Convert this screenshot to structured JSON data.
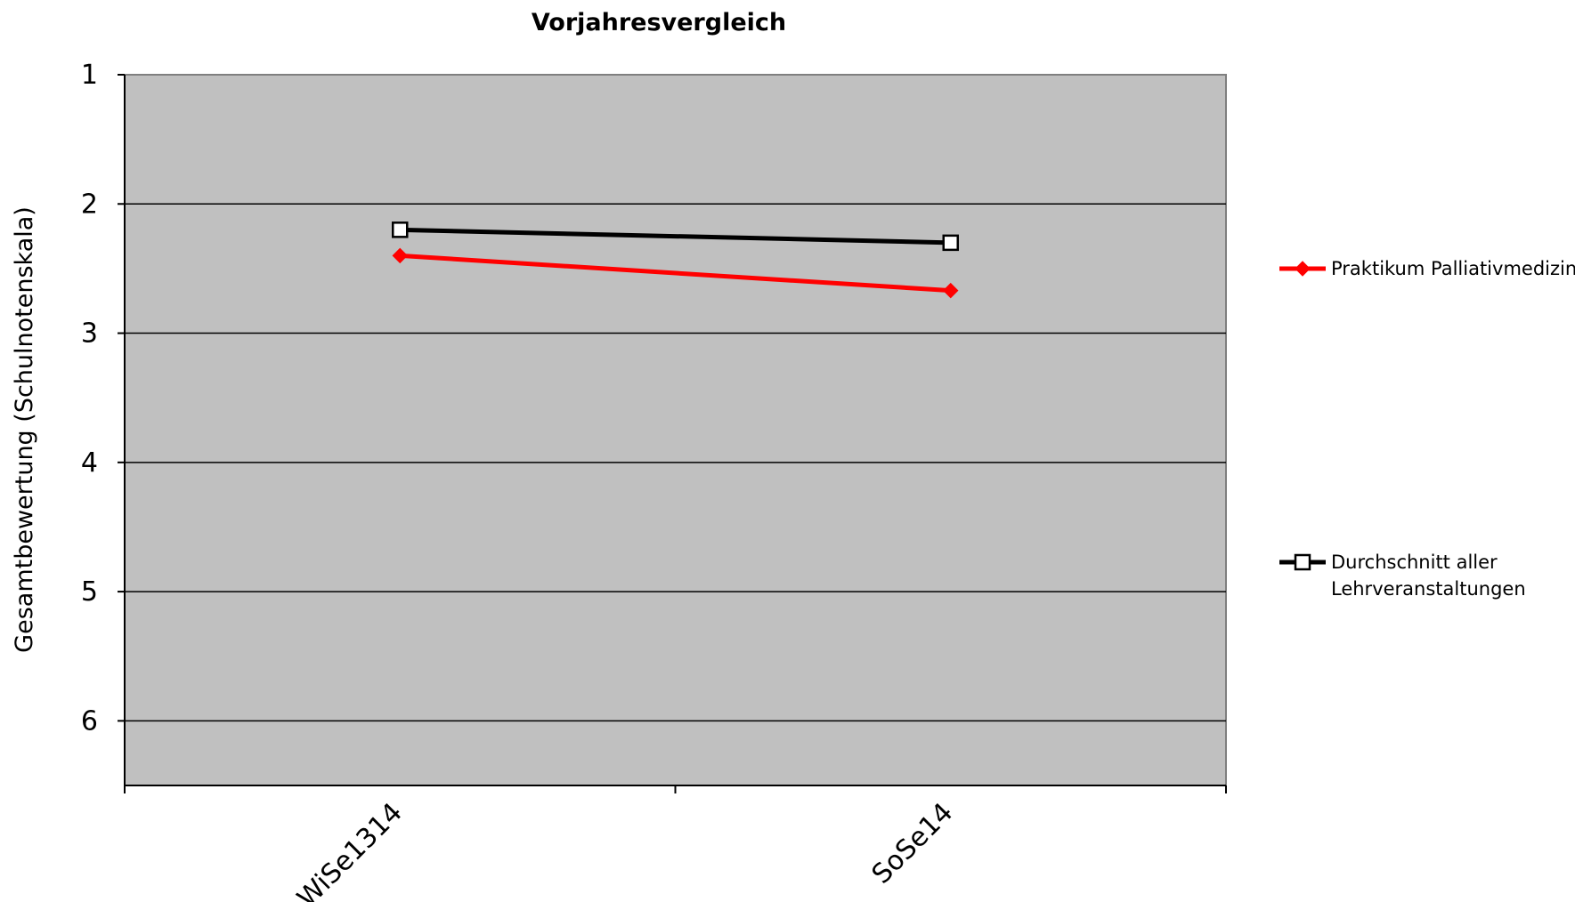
{
  "chart_data": {
    "type": "line",
    "title": "Vorjahresvergleich",
    "xlabel": "",
    "ylabel": "Gesamtbewertung (Schulnotenskala)",
    "categories": [
      "WiSe1314",
      "SoSe14"
    ],
    "ylim": [
      1,
      6.5
    ],
    "y_inverted": true,
    "yticks": [
      "1",
      "2",
      "3",
      "4",
      "5",
      "6"
    ],
    "grid": true,
    "legend_position": "right",
    "series": [
      {
        "name": "Praktikum Palliativmedizin",
        "values": [
          2.4,
          2.67
        ],
        "color": "#ff0000",
        "marker": "diamond-filled"
      },
      {
        "name": "Durchschnitt aller Lehrveranstaltungen",
        "legend_lines": [
          "Durchschnitt aller",
          "Lehrveranstaltungen"
        ],
        "values": [
          2.2,
          2.3
        ],
        "color": "#000000",
        "marker": "square-open"
      }
    ],
    "colors": {
      "plot_background": "#c0c0c0",
      "gridline": "#000000"
    }
  }
}
